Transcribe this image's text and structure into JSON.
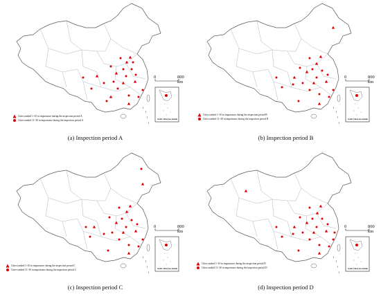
{
  "panels": [
    {
      "caption": "(a) Inspection period A",
      "scale_zero": "0",
      "scale_max": "800 km",
      "legend_triangle": "Cities ranked 1~10 in importance during the inspection period A",
      "legend_circle": "Cities ranked 11~30 in importance during the inspection period A",
      "inset_label": "South China Sea Islands"
    },
    {
      "caption": "(b) Inspection period B",
      "scale_zero": "0",
      "scale_max": "800 km",
      "legend_triangle": "Cities ranked 1~10 in importance during the inspection period B",
      "legend_circle": "Cities ranked 11~30 in importance during the inspection period B",
      "inset_label": "South China Sea Islands"
    },
    {
      "caption": "(c) Inspection period C",
      "scale_zero": "0",
      "scale_max": "800 km",
      "legend_triangle": "Cities ranked 1~10 in importance during the inspection period C",
      "legend_circle": "Cities ranked 11~30 in importance during the inspection period C",
      "inset_label": "South China Sea Islands"
    },
    {
      "caption": "(d) Inspection period D",
      "scale_zero": "0",
      "scale_max": "800 km",
      "legend_triangle": "Cities ranked 1~10 in importance during the inspection period D",
      "legend_circle": "Cities ranked 11~30 in importance during the inspection period D",
      "inset_label": "South China Sea Islands"
    }
  ],
  "colors": {
    "marker": "#e00000",
    "boundary": "#555555",
    "province_line": "#9aa0a8",
    "background": "#ffffff"
  },
  "icons": {
    "top_cities": "triangle-icon",
    "other_cities": "circle-icon"
  }
}
